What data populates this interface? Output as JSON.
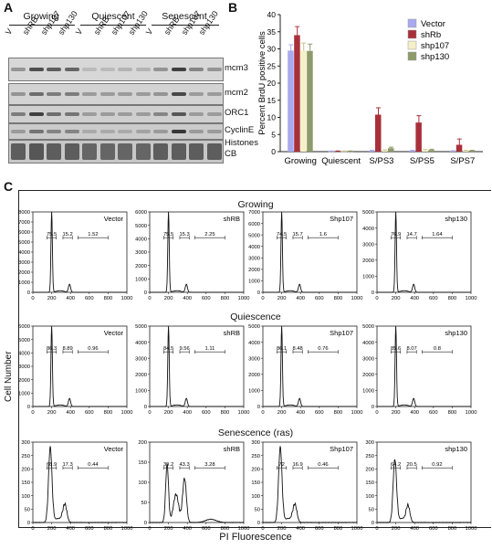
{
  "panelA": {
    "letter": "A",
    "groups": [
      "Growing",
      "Quiescent",
      "Senescent"
    ],
    "lanes": [
      "V",
      "shRB",
      "shp107",
      "shp130",
      "V",
      "shRB",
      "shp107",
      "shp130",
      "V",
      "shRB",
      "shp107",
      "shp130"
    ],
    "blots": [
      {
        "label": "mcm3",
        "bands": [
          0.35,
          0.8,
          0.7,
          0.65,
          0.1,
          0.1,
          0.15,
          0.15,
          0.35,
          0.9,
          0.45,
          0.35
        ]
      },
      {
        "label": "mcm2",
        "bands": [
          0.35,
          0.6,
          0.5,
          0.5,
          0.3,
          0.3,
          0.3,
          0.3,
          0.35,
          0.85,
          0.3,
          0.3
        ]
      },
      {
        "label": "ORC1",
        "bands": [
          0.5,
          0.9,
          0.6,
          0.55,
          0.3,
          0.3,
          0.3,
          0.3,
          0.45,
          0.75,
          0.3,
          0.3
        ]
      },
      {
        "label": "CyclinE",
        "bands": [
          0.3,
          0.55,
          0.45,
          0.45,
          0.2,
          0.2,
          0.2,
          0.25,
          0.3,
          0.95,
          0.3,
          0.3
        ]
      },
      {
        "label": "Histones CB",
        "bands": [
          0.7,
          0.75,
          0.7,
          0.7,
          0.65,
          0.65,
          0.65,
          0.65,
          0.7,
          0.7,
          0.7,
          0.7
        ]
      }
    ]
  },
  "panelB": {
    "letter": "B",
    "chart_data": {
      "type": "bar",
      "ylabel": "Percent BrdU positive cells",
      "ylim": [
        0,
        40
      ],
      "yticks": [
        0,
        5,
        10,
        15,
        20,
        25,
        30,
        35,
        40
      ],
      "categories": [
        "Growing",
        "Quiescent",
        "S/PS3",
        "S/PS5",
        "S/PS7"
      ],
      "series": [
        {
          "name": "Vector",
          "color": "#a9a9ee",
          "values": [
            29.5,
            0.1,
            0.3,
            0.3,
            0.2
          ],
          "errors": [
            1.7,
            0.1,
            0.1,
            0.1,
            0.1
          ]
        },
        {
          "name": "shRb",
          "color": "#a8303a",
          "values": [
            34,
            0.1,
            10.8,
            8.5,
            2.0
          ],
          "errors": [
            2.5,
            0.1,
            2.0,
            2.0,
            1.7
          ]
        },
        {
          "name": "shp107",
          "color": "#f4f0c8",
          "values": [
            29.5,
            0.1,
            0.3,
            0.4,
            0.3
          ],
          "errors": [
            2.2,
            0.1,
            0.2,
            0.2,
            0.1
          ]
        },
        {
          "name": "shp130",
          "color": "#8e9a6a",
          "values": [
            29.4,
            0.1,
            1.0,
            0.5,
            0.3
          ],
          "errors": [
            2.0,
            0.1,
            0.3,
            0.2,
            0.1
          ]
        }
      ],
      "legend": "top-right"
    }
  },
  "panelC": {
    "letter": "C",
    "ylabel": "Cell Number",
    "xlabel": "PI Fluorescence",
    "xticks": [
      "0",
      "200",
      "400",
      "600",
      "800",
      "1000"
    ],
    "rows": [
      {
        "title": "Growing",
        "panels": [
          {
            "name": "Vector",
            "ymax": 8000,
            "yticks": [
              "0",
              "1000",
              "2000",
              "3000",
              "4000",
              "5000",
              "6000",
              "7000",
              "8000"
            ],
            "gates": [
              "75.5",
              "15.2",
              "1.52"
            ],
            "shape": "sharp"
          },
          {
            "name": "shRB",
            "ymax": 6000,
            "yticks": [
              "0",
              "1000",
              "2000",
              "3000",
              "4000",
              "5000",
              "6000"
            ],
            "gates": [
              "75.5",
              "15.3",
              "2.25"
            ],
            "shape": "sharp"
          },
          {
            "name": "Shp107",
            "ymax": 7000,
            "yticks": [
              "0",
              "1000",
              "2000",
              "3000",
              "4000",
              "5000",
              "6000",
              "7000"
            ],
            "gates": [
              "74.5",
              "15.7",
              "1.6"
            ],
            "shape": "sharp"
          },
          {
            "name": "shp130",
            "ymax": 5000,
            "yticks": [
              "0",
              "1000",
              "2000",
              "3000",
              "4000",
              "5000"
            ],
            "gates": [
              "76.9",
              "14.7",
              "1.64"
            ],
            "shape": "sharp"
          }
        ]
      },
      {
        "title": "Quiescence",
        "panels": [
          {
            "name": "Vector",
            "ymax": 6000,
            "yticks": [
              "0",
              "1000",
              "2000",
              "3000",
              "4000",
              "5000",
              "6000"
            ],
            "gates": [
              "86.3",
              "8.89",
              "0.96"
            ],
            "shape": "sharp"
          },
          {
            "name": "shRB",
            "ymax": 5000,
            "yticks": [
              "0",
              "1000",
              "2000",
              "3000",
              "4000",
              "5000"
            ],
            "gates": [
              "84.5",
              "9.56",
              "1.11"
            ],
            "shape": "sharp"
          },
          {
            "name": "Shp107",
            "ymax": 5000,
            "yticks": [
              "0",
              "1000",
              "2000",
              "3000",
              "4000",
              "5000"
            ],
            "gates": [
              "86.1",
              "8.48",
              "0.76"
            ],
            "shape": "sharp"
          },
          {
            "name": "shp130",
            "ymax": 5000,
            "yticks": [
              "0",
              "1000",
              "2000",
              "3000",
              "4000",
              "5000"
            ],
            "gates": [
              "85.6",
              "8.07",
              "0.8"
            ],
            "shape": "sharp"
          }
        ]
      },
      {
        "title": "Senescence (ras)",
        "panels": [
          {
            "name": "Vector",
            "ymax": 300,
            "yticks": [
              "0",
              "50",
              "100",
              "150",
              "200",
              "250",
              "300"
            ],
            "gates": [
              "68.9",
              "17.3",
              "0.44"
            ],
            "shape": "broad"
          },
          {
            "name": "shRB",
            "ymax": 200,
            "yticks": [
              "0",
              "50",
              "100",
              "150",
              "200"
            ],
            "gates": [
              "39.2",
              "43.3",
              "3.28"
            ],
            "shape": "double"
          },
          {
            "name": "Shp107",
            "ymax": 300,
            "yticks": [
              "0",
              "50",
              "100",
              "150",
              "200",
              "250",
              "300"
            ],
            "gates": [
              "72",
              "16.9",
              "0.46"
            ],
            "shape": "broad"
          },
          {
            "name": "shp130",
            "ymax": 300,
            "yticks": [
              "0",
              "50",
              "100",
              "150",
              "200",
              "250",
              "300"
            ],
            "gates": [
              "64.2",
              "20.5",
              "0.92"
            ],
            "shape": "broad2"
          }
        ]
      }
    ]
  }
}
